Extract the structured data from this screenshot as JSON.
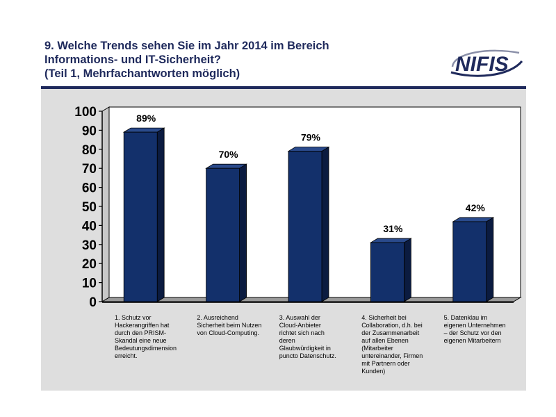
{
  "title": {
    "line1": "9. Welche Trends sehen Sie im Jahr 2014 im Bereich",
    "line2": "Informations- und IT-Sicherheit?",
    "line3": "(Teil 1, Mehrfachantworten möglich)"
  },
  "logo": {
    "text": "NIFIS"
  },
  "colors": {
    "bar_front": "#13306b",
    "bar_side": "#0b1b40",
    "bar_top": "#2a4a8c",
    "title": "#1f2a5c",
    "panel_bg": "#dedede",
    "plot_bg": "#ffffff"
  },
  "chart_data": {
    "type": "bar",
    "title": "",
    "xlabel": "",
    "ylabel": "",
    "ylim": [
      0,
      100
    ],
    "yticks": [
      0,
      10,
      20,
      30,
      40,
      50,
      60,
      70,
      80,
      90,
      100
    ],
    "grid": false,
    "categories": [
      "1. Schutz vor Hackerangriffen hat durch den PRISM-Skandal eine neue Bedeutungsdimension erreicht.",
      "2. Ausreichend Sicherheit beim Nutzen von Cloud-Computing.",
      "3. Auswahl der Cloud-Anbieter richtet sich nach deren Glaubwürdigkeit in puncto Datenschutz.",
      "4. Sicherheit bei Collaboration, d.h. bei der Zusammenarbeit auf allen Ebenen (Mitarbeiter untereinander, Firmen mit Partnern oder Kunden)",
      "5. Datenklau im eigenen Unternehmen – der Schutz vor den eigenen Mitarbeitern"
    ],
    "category_lines": [
      [
        "1. Schutz vor",
        "Hackerangriffen hat",
        "durch den PRISM-",
        "Skandal eine neue",
        "Bedeutungsdimension",
        "erreicht."
      ],
      [
        "2. Ausreichend",
        "Sicherheit beim Nutzen",
        "von Cloud-Computing."
      ],
      [
        "3. Auswahl der",
        "Cloud-Anbieter",
        "richtet sich nach",
        "deren",
        "Glaubwürdigkeit in",
        "puncto Datenschutz."
      ],
      [
        "4. Sicherheit bei",
        "Collaboration, d.h. bei",
        "der Zusammenarbeit",
        "auf allen Ebenen",
        "(Mitarbeiter",
        "untereinander, Firmen",
        "mit Partnern oder",
        "Kunden)"
      ],
      [
        "5. Datenklau im",
        "eigenen Unternehmen",
        "– der Schutz vor den",
        "eigenen Mitarbeitern"
      ]
    ],
    "values": [
      89,
      70,
      79,
      31,
      42
    ],
    "data_labels": [
      "89%",
      "70%",
      "79%",
      "31%",
      "42%"
    ]
  }
}
